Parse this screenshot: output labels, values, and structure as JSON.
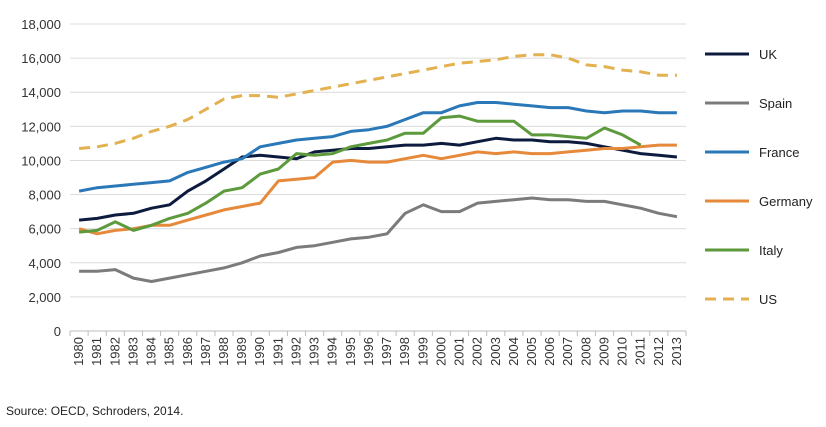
{
  "chart_data": {
    "type": "line",
    "title": "",
    "xlabel": "",
    "ylabel": "",
    "ylim": [
      0,
      18000
    ],
    "yticks": [
      "0",
      "2,000",
      "4,000",
      "6,000",
      "8,000",
      "10,000",
      "12,000",
      "14,000",
      "16,000",
      "18,000"
    ],
    "grid": true,
    "legend_position": "right",
    "x": [
      "1980",
      "1981",
      "1982",
      "1983",
      "1984",
      "1985",
      "1986",
      "1987",
      "1988",
      "1989",
      "1990",
      "1991",
      "1992",
      "1993",
      "1994",
      "1995",
      "1996",
      "1997",
      "1998",
      "1999",
      "2000",
      "2001",
      "2002",
      "2003",
      "2004",
      "2005",
      "2006",
      "2007",
      "2008",
      "2009",
      "2010",
      "2011",
      "2012",
      "2013"
    ],
    "series": [
      {
        "name": "UK",
        "color": "#0d1b3e",
        "dashed": false,
        "values": [
          6500,
          6600,
          6800,
          6900,
          7200,
          7400,
          8200,
          8800,
          9500,
          10200,
          10300,
          10200,
          10100,
          10500,
          10600,
          10700,
          10700,
          10800,
          10900,
          10900,
          11000,
          10900,
          11100,
          11300,
          11200,
          11200,
          11100,
          11100,
          11000,
          10800,
          10600,
          10400,
          10300,
          10200
        ]
      },
      {
        "name": "Spain",
        "color": "#7b7b7b",
        "dashed": false,
        "values": [
          3500,
          3500,
          3600,
          3100,
          2900,
          3100,
          3300,
          3500,
          3700,
          4000,
          4400,
          4600,
          4900,
          5000,
          5200,
          5400,
          5500,
          5700,
          6900,
          7400,
          7000,
          7000,
          7500,
          7600,
          7700,
          7800,
          7700,
          7700,
          7600,
          7600,
          7400,
          7200,
          6900,
          6700
        ]
      },
      {
        "name": "France",
        "color": "#2a78b8",
        "dashed": false,
        "values": [
          8200,
          8400,
          8500,
          8600,
          8700,
          8800,
          9300,
          9600,
          9900,
          10100,
          10800,
          11000,
          11200,
          11300,
          11400,
          11700,
          11800,
          12000,
          12400,
          12800,
          12800,
          13200,
          13400,
          13400,
          13300,
          13200,
          13100,
          13100,
          12900,
          12800,
          12900,
          12900,
          12800,
          12800
        ]
      },
      {
        "name": "Germany",
        "color": "#e6893a",
        "dashed": false,
        "values": [
          6000,
          5700,
          5900,
          6000,
          6200,
          6200,
          6500,
          6800,
          7100,
          7300,
          7500,
          8800,
          8900,
          9000,
          9900,
          10000,
          9900,
          9900,
          10100,
          10300,
          10100,
          10300,
          10500,
          10400,
          10500,
          10400,
          10400,
          10500,
          10600,
          10700,
          10700,
          10800,
          10900,
          10900
        ]
      },
      {
        "name": "Italy",
        "color": "#5c9a3c",
        "dashed": false,
        "values": [
          5800,
          5900,
          6400,
          5900,
          6200,
          6600,
          6900,
          7500,
          8200,
          8400,
          9200,
          9500,
          10400,
          10300,
          10400,
          10800,
          11000,
          11200,
          11600,
          11600,
          12500,
          12600,
          12300,
          12300,
          12300,
          11500,
          11500,
          11400,
          11300,
          11900,
          11500,
          10900,
          null,
          null
        ]
      },
      {
        "name": "US",
        "color": "#e3b14f",
        "dashed": true,
        "values": [
          10700,
          10800,
          11000,
          11300,
          11700,
          12000,
          12400,
          13000,
          13600,
          13800,
          13800,
          13700,
          13900,
          14100,
          14300,
          14500,
          14700,
          14900,
          15100,
          15300,
          15500,
          15700,
          15800,
          15900,
          16100,
          16200,
          16200,
          16000,
          15600,
          15500,
          15300,
          15200,
          15000,
          15000
        ]
      }
    ]
  },
  "source": "Source: OECD, Schroders, 2014."
}
